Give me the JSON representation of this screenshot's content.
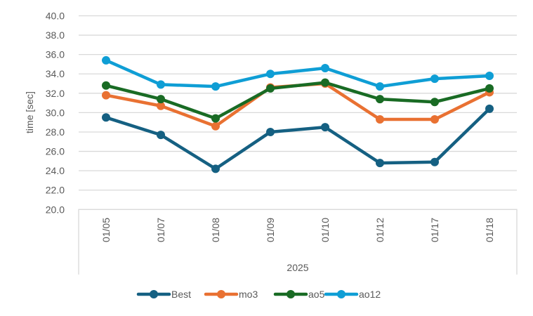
{
  "chart_data": {
    "type": "line",
    "title": "",
    "xlabel": "2025",
    "ylabel": "time [sec]",
    "ylim": [
      20.0,
      40.0
    ],
    "ytick_step": 2.0,
    "ytick_labels": [
      "20.0",
      "22.0",
      "24.0",
      "26.0",
      "28.0",
      "30.0",
      "32.0",
      "34.0",
      "36.0",
      "38.0",
      "40.0"
    ],
    "grid": "horizontal",
    "legend_position": "bottom",
    "categories": [
      "01/05",
      "01/07",
      "01/08",
      "01/09",
      "01/10",
      "01/12",
      "01/17",
      "01/18"
    ],
    "category_group": "2025",
    "series": [
      {
        "name": "Best",
        "color": "#156082",
        "values": [
          29.5,
          27.7,
          24.2,
          28.0,
          28.5,
          24.8,
          24.9,
          30.4
        ]
      },
      {
        "name": "mo3",
        "color": "#E97132",
        "values": [
          31.8,
          30.7,
          28.6,
          32.6,
          33.0,
          29.3,
          29.3,
          32.1
        ]
      },
      {
        "name": "ao5",
        "color": "#196B24",
        "values": [
          32.8,
          31.4,
          29.4,
          32.5,
          33.1,
          31.4,
          31.1,
          32.5
        ]
      },
      {
        "name": "ao12",
        "color": "#0F9ED5",
        "values": [
          35.4,
          32.9,
          32.7,
          34.0,
          34.6,
          32.7,
          33.5,
          33.8
        ]
      }
    ]
  }
}
